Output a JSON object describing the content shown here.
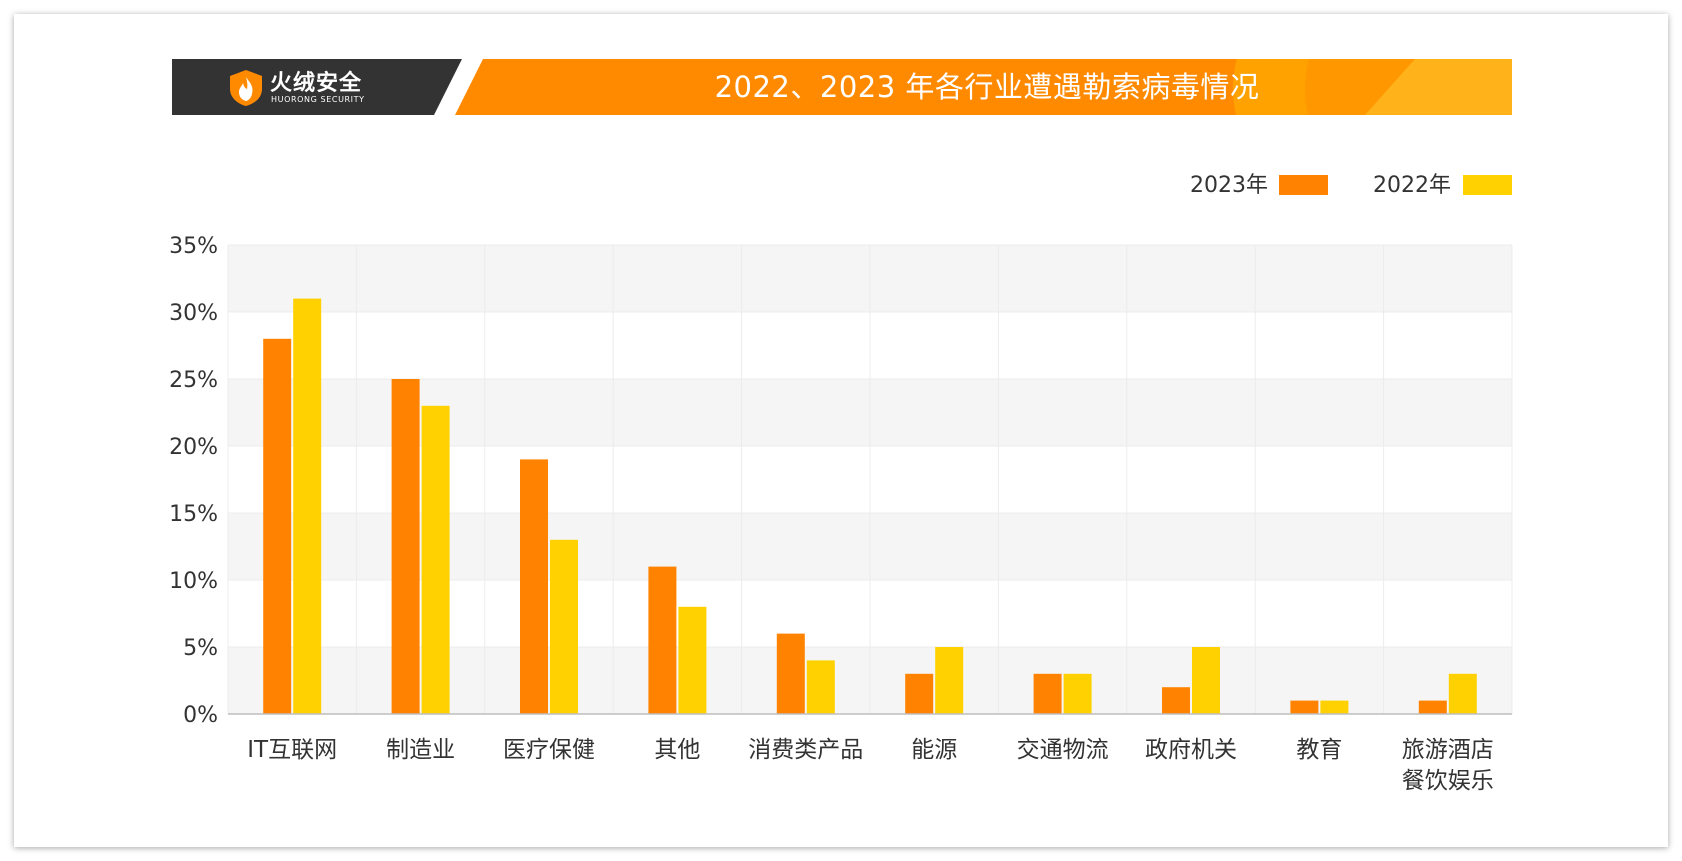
{
  "banner": {
    "title": "2022、2023 年各行业遭遇勒索病毒情况",
    "brand_name": "火绒安全",
    "brand_subtitle": "HUORONG SECURITY"
  },
  "colors": {
    "series_2023": "#ff8300",
    "series_2022": "#ffd100",
    "banner_dark": "#333333",
    "banner_orange": "#ff8a00"
  },
  "chart_data": {
    "type": "bar",
    "title": "2022、2023 年各行业遭遇勒索病毒情况",
    "categories": [
      "IT互联网",
      "制造业",
      "医疗保健",
      "其他",
      "消费类产品",
      "能源",
      "交通物流",
      "政府机关",
      "教育",
      "旅游酒店\n餐饮娱乐"
    ],
    "series": [
      {
        "name": "2023年",
        "values": [
          28,
          25,
          19,
          11,
          6,
          3,
          3,
          2,
          1,
          1
        ]
      },
      {
        "name": "2022年",
        "values": [
          31,
          23,
          13,
          8,
          4,
          5,
          3,
          5,
          1,
          3
        ]
      }
    ],
    "yticks": [
      "0%",
      "5%",
      "10%",
      "15%",
      "20%",
      "25%",
      "30%",
      "35%"
    ],
    "ylim": [
      0,
      35
    ],
    "legend_position": "top-right",
    "grid": "alternating horizontal bands"
  }
}
